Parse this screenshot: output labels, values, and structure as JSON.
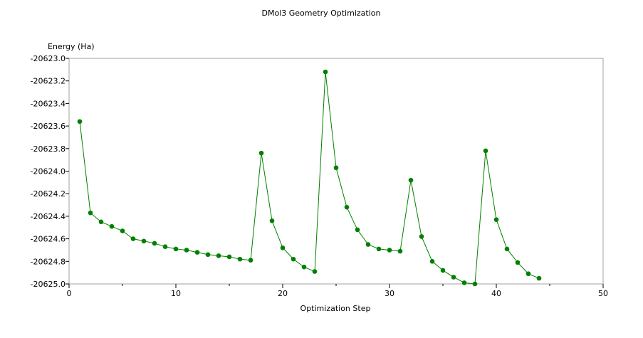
{
  "chart_data": {
    "type": "line",
    "title": "DMol3 Geometry Optimization",
    "xlabel": "Optimization Step",
    "ylabel": "Energy (Ha)",
    "xlim": [
      0,
      50
    ],
    "ylim": [
      -20625.0,
      -20623.0
    ],
    "x_ticks": [
      0,
      10,
      20,
      30,
      40,
      50
    ],
    "x_tick_labels": [
      "0",
      "10",
      "20",
      "30",
      "40",
      "50"
    ],
    "x_minor_step": 5,
    "y_ticks": [
      -20623.0,
      -20623.2,
      -20623.4,
      -20623.6,
      -20623.8,
      -20624.0,
      -20624.2,
      -20624.4,
      -20624.6,
      -20624.8,
      -20625.0
    ],
    "y_tick_labels": [
      "-20623.0",
      "-20623.2",
      "-20623.4",
      "-20623.6",
      "-20623.8",
      "-20624.0",
      "-20624.2",
      "-20624.4",
      "-20624.6",
      "-20624.8",
      "-20625.0"
    ],
    "grid": false,
    "legend": "none",
    "series": [
      {
        "color": "#008000",
        "x": [
          1,
          2,
          3,
          4,
          5,
          6,
          7,
          8,
          9,
          10,
          11,
          12,
          13,
          14,
          15,
          16,
          17,
          18,
          19,
          20,
          21,
          22,
          23,
          24,
          25,
          26,
          27,
          28,
          29,
          30,
          31,
          32,
          33,
          34,
          35,
          36,
          37,
          38,
          39,
          40,
          41,
          42,
          43,
          44
        ],
        "y": [
          -20623.56,
          -20624.37,
          -20624.45,
          -20624.49,
          -20624.53,
          -20624.6,
          -20624.62,
          -20624.64,
          -20624.67,
          -20624.69,
          -20624.7,
          -20624.72,
          -20624.74,
          -20624.75,
          -20624.76,
          -20624.78,
          -20624.79,
          -20623.84,
          -20624.44,
          -20624.68,
          -20624.78,
          -20624.85,
          -20624.89,
          -20623.12,
          -20623.97,
          -20624.32,
          -20624.52,
          -20624.65,
          -20624.69,
          -20624.7,
          -20624.71,
          -20624.08,
          -20624.58,
          -20624.8,
          -20624.88,
          -20624.94,
          -20624.99,
          -20625.0,
          -20623.82,
          -20624.43,
          -20624.69,
          -20624.81,
          -20624.91,
          -20624.95
        ]
      }
    ]
  }
}
